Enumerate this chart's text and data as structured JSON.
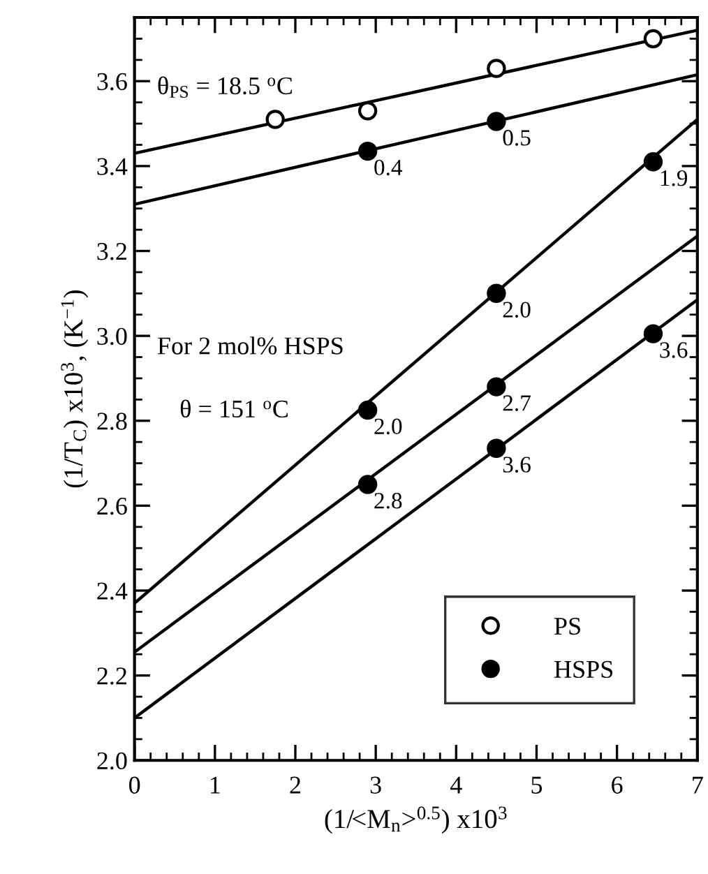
{
  "chart_data": {
    "type": "scatter",
    "xlabel": "(1/<M$_{n}$>$^{0.5}$) x10$^{3}$",
    "ylabel": "(1/T$_{C}$) x10$^{3}$, (K$^{−1}$)",
    "xlim": [
      0,
      7
    ],
    "ylim": [
      2.0,
      3.75
    ],
    "xticks": [
      0,
      1,
      2,
      3,
      4,
      5,
      6,
      7
    ],
    "yticks": [
      {
        "value": 2.0,
        "label": "2.0"
      },
      {
        "value": 2.2,
        "label": "2.2"
      },
      {
        "value": 2.4,
        "label": "2.4"
      },
      {
        "value": 2.6,
        "label": "2.6"
      },
      {
        "value": 2.8,
        "label": "2.8"
      },
      {
        "value": 3.0,
        "label": "3.0"
      },
      {
        "value": 3.2,
        "label": "3.2"
      },
      {
        "value": 3.4,
        "label": "3.4"
      },
      {
        "value": 3.6,
        "label": "3.6"
      }
    ],
    "grid": false,
    "legend": "bottom right",
    "marker": "circle",
    "series": [
      {
        "name": "PS",
        "color": "#ffffff",
        "x": [
          1.75,
          2.9,
          4.5,
          6.45
        ],
        "values": [
          3.51,
          3.53,
          3.63,
          3.7
        ]
      },
      {
        "name": "HSPS",
        "color": "#000000",
        "x": [
          2.9,
          4.5,
          2.9,
          4.5,
          6.45,
          2.9,
          4.5,
          4.5,
          6.45
        ],
        "values": [
          3.435,
          3.505,
          2.825,
          3.1,
          3.41,
          2.65,
          2.88,
          2.735,
          3.005
        ]
      },
      {
        "type": "line",
        "marker": "none",
        "color": "#000000",
        "x": [
          0,
          7
        ],
        "values": [
          3.43,
          3.72
        ]
      },
      {
        "type": "line",
        "marker": "none",
        "color": "#000000",
        "x": [
          0,
          7
        ],
        "values": [
          3.31,
          3.615
        ]
      },
      {
        "type": "line",
        "marker": "none",
        "color": "#000000",
        "x": [
          0,
          7
        ],
        "values": [
          2.37,
          3.51
        ]
      },
      {
        "type": "line",
        "marker": "none",
        "color": "#000000",
        "x": [
          0,
          7
        ],
        "values": [
          2.255,
          3.235
        ]
      },
      {
        "type": "line",
        "marker": "none",
        "color": "#000000",
        "x": [
          0,
          7
        ],
        "values": [
          2.1,
          3.085
        ]
      }
    ],
    "annotations": [
      "θ$_{PS}$ = 18.5 $^{o}$C",
      "For 2 mol% HSPS",
      "θ = 151 $^{o}$C",
      {
        "text": "0.4",
        "x": 2.9,
        "y": 3.435
      },
      {
        "text": "0.5",
        "x": 4.5,
        "y": 3.505
      },
      {
        "text": "2.0",
        "x": 2.9,
        "y": 2.825
      },
      {
        "text": "2.0",
        "x": 4.5,
        "y": 3.1
      },
      {
        "text": "1.9",
        "x": 6.45,
        "y": 3.41
      },
      {
        "text": "2.8",
        "x": 2.9,
        "y": 2.65
      },
      {
        "text": "2.7",
        "x": 4.5,
        "y": 2.88
      },
      {
        "text": "3.6",
        "x": 4.5,
        "y": 2.735
      },
      {
        "text": "3.6",
        "x": 6.45,
        "y": 3.005
      }
    ]
  }
}
